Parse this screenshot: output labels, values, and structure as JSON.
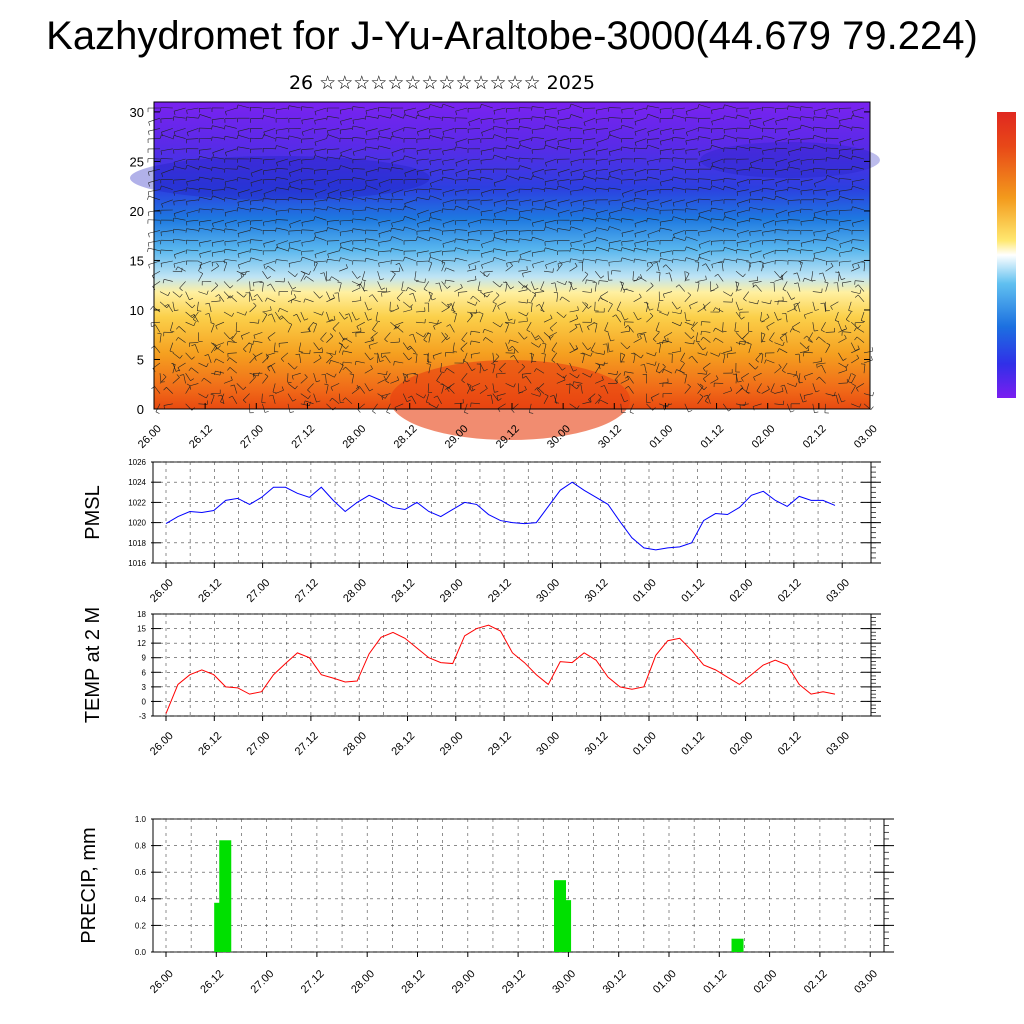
{
  "title": "Kazhydromet for J-Yu-Araltobe-3000(44.679 79.224)",
  "subtitle": "26 ☆☆☆☆☆☆☆☆☆☆☆☆☆ 2025",
  "colors": {
    "pmsl_line": "#0000ff",
    "temp_line": "#ff0000",
    "precip_bar": "#00e000",
    "colorbar": [
      "#e03010",
      "#f06010",
      "#f8a020",
      "#fde060",
      "#fff4b0",
      "#c0e8f8",
      "#50b8f0",
      "#1080e0",
      "#3040e0",
      "#7020f0"
    ]
  },
  "chart_data": [
    {
      "type": "heatmap",
      "name": "cross-section",
      "xlabel": "",
      "ylabel": "",
      "x_ticks": [
        "26.00",
        "26.12",
        "27.00",
        "27.12",
        "28.00",
        "28.12",
        "29.00",
        "29.12",
        "30.00",
        "30.12",
        "01.00",
        "01.12",
        "02.00",
        "02.12",
        "03.00"
      ],
      "y_ticks": [
        "0",
        "5",
        "10",
        "15",
        "20",
        "25",
        "30"
      ],
      "ylim": [
        0,
        31
      ],
      "overlay": "wind barbs"
    },
    {
      "type": "line",
      "name": "pmsl",
      "ylabel": "PMSL",
      "ylim": [
        1016,
        1026
      ],
      "y_ticks": [
        "1016",
        "1018",
        "1020",
        "1022",
        "1024",
        "1026"
      ],
      "x_ticks": [
        "26.00",
        "26.12",
        "27.00",
        "27.12",
        "28.00",
        "28.12",
        "29.00",
        "29.12",
        "30.00",
        "30.12",
        "01.00",
        "01.12",
        "02.00",
        "02.12",
        "03.00"
      ],
      "values": [
        1019.9,
        1020.6,
        1021.1,
        1021.0,
        1021.2,
        1022.2,
        1022.4,
        1021.8,
        1022.5,
        1023.5,
        1023.5,
        1022.9,
        1022.5,
        1023.5,
        1022.2,
        1021.1,
        1022.0,
        1022.7,
        1022.2,
        1021.5,
        1021.3,
        1022.0,
        1021.1,
        1020.6,
        1021.3,
        1022.0,
        1021.8,
        1020.8,
        1020.2,
        1020.0,
        1019.9,
        1020.0,
        1021.6,
        1023.2,
        1024.0,
        1023.2,
        1022.5,
        1021.8,
        1020.1,
        1018.5,
        1017.5,
        1017.3,
        1017.5,
        1017.6,
        1018.0,
        1020.2,
        1020.9,
        1020.8,
        1021.5,
        1022.7,
        1023.1,
        1022.2,
        1021.6,
        1022.6,
        1022.2,
        1022.2,
        1021.7
      ]
    },
    {
      "type": "line",
      "name": "temp",
      "ylabel": "TEMP at 2 M",
      "ylim": [
        -3,
        18
      ],
      "y_ticks": [
        "-3",
        "0",
        "3",
        "6",
        "9",
        "12",
        "15",
        "18"
      ],
      "x_ticks": [
        "26.00",
        "26.12",
        "27.00",
        "27.12",
        "28.00",
        "28.12",
        "29.00",
        "29.12",
        "30.00",
        "30.12",
        "01.00",
        "01.12",
        "02.00",
        "02.12",
        "03.00"
      ],
      "values": [
        -2.5,
        3.5,
        5.5,
        6.5,
        5.5,
        3.0,
        2.8,
        1.5,
        2.0,
        5.5,
        7.8,
        10.0,
        9.0,
        5.5,
        4.8,
        4.0,
        4.2,
        9.8,
        13.2,
        14.2,
        13.0,
        11.0,
        9.0,
        8.0,
        7.8,
        13.5,
        15.0,
        15.7,
        14.5,
        10.0,
        8.0,
        5.5,
        3.5,
        8.2,
        8.0,
        10.0,
        8.5,
        5.0,
        3.0,
        2.5,
        3.0,
        9.5,
        12.5,
        13.0,
        10.5,
        7.5,
        6.5,
        5.0,
        3.5,
        5.5,
        7.5,
        8.5,
        7.5,
        3.5,
        1.5,
        2.0,
        1.5
      ]
    },
    {
      "type": "bar",
      "name": "precip",
      "ylabel": "PRECIP, mm",
      "ylim": [
        0,
        1.0
      ],
      "y_ticks": [
        "0.0",
        "0.2",
        "0.4",
        "0.6",
        "0.8",
        "1.0"
      ],
      "x_ticks": [
        "26.00",
        "26.12",
        "27.00",
        "27.12",
        "28.00",
        "28.12",
        "29.00",
        "29.12",
        "30.00",
        "30.12",
        "01.00",
        "01.12",
        "02.00",
        "02.12",
        "03.00"
      ],
      "bars": [
        {
          "step": 10,
          "value": 0.37
        },
        {
          "step": 11,
          "value": 0.84
        },
        {
          "step": 77,
          "value": 0.54
        },
        {
          "step": 78,
          "value": 0.39
        },
        {
          "step": 112,
          "value": 0.1
        }
      ]
    }
  ]
}
